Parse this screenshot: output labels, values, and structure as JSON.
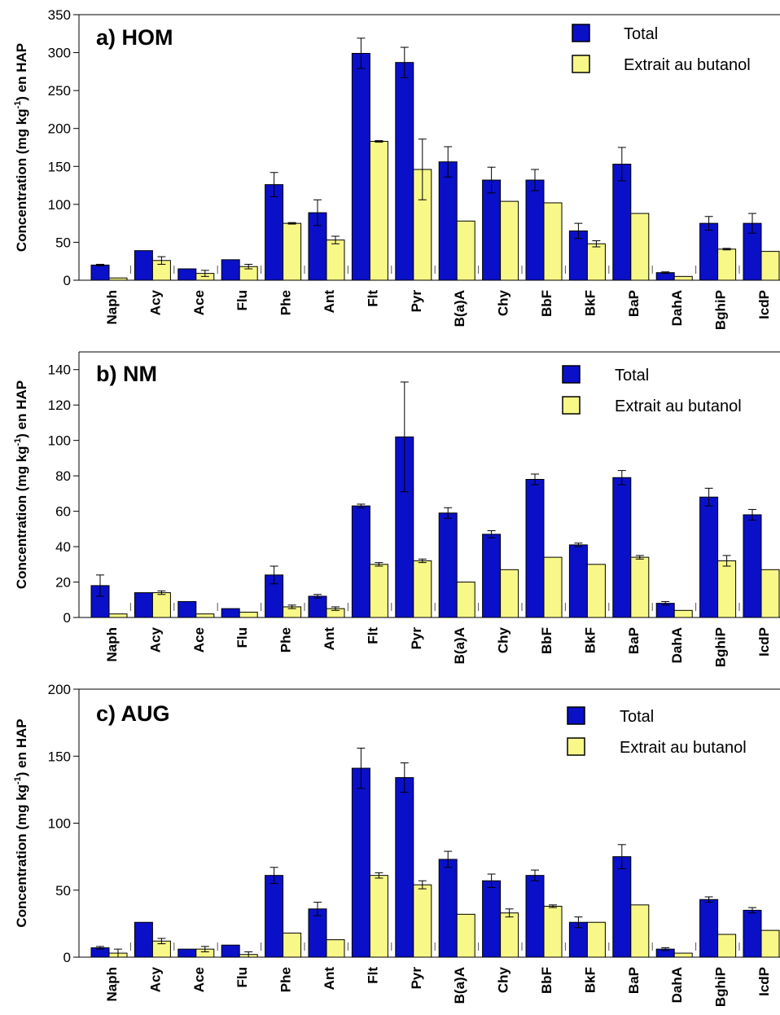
{
  "chart_data": [
    {
      "type": "bar",
      "title": "a) HOM",
      "ylabel_main": "Concentration (mg kg",
      "ylabel_sup": "-1",
      "ylabel_tail": ") en HAP",
      "ylim": [
        0,
        350
      ],
      "yticks": [
        "0",
        "50",
        "100",
        "150",
        "200",
        "250",
        "300",
        "350"
      ],
      "yticks_values": [
        0,
        50,
        100,
        150,
        200,
        250,
        300,
        350
      ],
      "categories": [
        "Naph",
        "Acy",
        "Ace",
        "Flu",
        "Phe",
        "Ant",
        "Flt",
        "Pyr",
        "B(a)A",
        "Chy",
        "BbF",
        "BkF",
        "BaP",
        "DahA",
        "BghiP",
        "IcdP"
      ],
      "legend": [
        "Total",
        "Extrait au butanol"
      ],
      "legend_position": "top-right",
      "series": [
        {
          "name": "Total",
          "color": "#0a10c8",
          "values": [
            20,
            39,
            15,
            27,
            126,
            89,
            299,
            287,
            156,
            132,
            132,
            65,
            153,
            10,
            75,
            75
          ],
          "errors": [
            1,
            0,
            0,
            0,
            16,
            17,
            20,
            20,
            20,
            17,
            14,
            10,
            22,
            1,
            9,
            13
          ]
        },
        {
          "name": "Extrait au butanol",
          "color": "#f8f888",
          "values": [
            3,
            26,
            9,
            18,
            75,
            53,
            183,
            146,
            78,
            104,
            102,
            48,
            88,
            5,
            41,
            38
          ],
          "errors": [
            0,
            5,
            4,
            3,
            1,
            5,
            1,
            40,
            0,
            0,
            0,
            4,
            0,
            0,
            1,
            0
          ]
        }
      ]
    },
    {
      "type": "bar",
      "title": "b) NM",
      "ylabel_main": "Concentration (mg kg",
      "ylabel_sup": "-1",
      "ylabel_tail": ") en HAP",
      "ylim": [
        0,
        150
      ],
      "yticks": [
        "0",
        "20",
        "40",
        "60",
        "80",
        "100",
        "120",
        "140"
      ],
      "yticks_values": [
        0,
        20,
        40,
        60,
        80,
        100,
        120,
        140
      ],
      "categories": [
        "Naph",
        "Acy",
        "Ace",
        "Flu",
        "Phe",
        "Ant",
        "Flt",
        "Pyr",
        "B(a)A",
        "Chy",
        "BbF",
        "BkF",
        "BaP",
        "DahA",
        "BghiP",
        "IcdP"
      ],
      "legend": [
        "Total",
        "Extrait au butanol"
      ],
      "legend_position": "top-right",
      "series": [
        {
          "name": "Total",
          "color": "#0a10c8",
          "values": [
            18,
            14,
            9,
            5,
            24,
            12,
            63,
            102,
            59,
            47,
            78,
            41,
            79,
            8,
            68,
            58
          ],
          "errors": [
            6,
            0,
            0,
            0,
            5,
            1,
            1,
            31,
            3,
            2,
            3,
            1,
            4,
            1,
            5,
            3
          ]
        },
        {
          "name": "Extrait au butanol",
          "color": "#f8f888",
          "values": [
            2,
            14,
            2,
            3,
            6,
            5,
            30,
            32,
            20,
            27,
            34,
            30,
            34,
            4,
            32,
            27
          ],
          "errors": [
            0,
            1,
            0,
            0,
            1,
            1,
            1,
            1,
            0,
            0,
            0,
            0,
            1,
            0,
            3,
            0
          ]
        }
      ]
    },
    {
      "type": "bar",
      "title": "c) AUG",
      "ylabel_main": "Concentration (mg kg",
      "ylabel_sup": "-1",
      "ylabel_tail": ") en HAP",
      "ylim": [
        0,
        200
      ],
      "yticks": [
        "0",
        "50",
        "100",
        "150",
        "200"
      ],
      "yticks_values": [
        0,
        50,
        100,
        150,
        200
      ],
      "categories": [
        "Naph",
        "Acy",
        "Ace",
        "Flu",
        "Phe",
        "Ant",
        "Flt",
        "Pyr",
        "B(a)A",
        "Chy",
        "BbF",
        "BkF",
        "BaP",
        "DahA",
        "BghiP",
        "IcdP"
      ],
      "legend": [
        "Total",
        "Extrait au butanol"
      ],
      "legend_position": "top-right",
      "series": [
        {
          "name": "Total",
          "color": "#0a10c8",
          "values": [
            7,
            26,
            6,
            9,
            61,
            36,
            141,
            134,
            73,
            57,
            61,
            26,
            75,
            6,
            43,
            35
          ],
          "errors": [
            1,
            0,
            0,
            0,
            6,
            5,
            15,
            11,
            6,
            5,
            4,
            4,
            9,
            1,
            2,
            2
          ]
        },
        {
          "name": "Extrait au butanol",
          "color": "#f8f888",
          "values": [
            3,
            12,
            6,
            2,
            18,
            13,
            61,
            54,
            32,
            33,
            38,
            26,
            39,
            3,
            17,
            20
          ],
          "errors": [
            3,
            2,
            2,
            2,
            0,
            0,
            2,
            3,
            0,
            3,
            1,
            0,
            0,
            0,
            0,
            0
          ]
        }
      ]
    }
  ]
}
